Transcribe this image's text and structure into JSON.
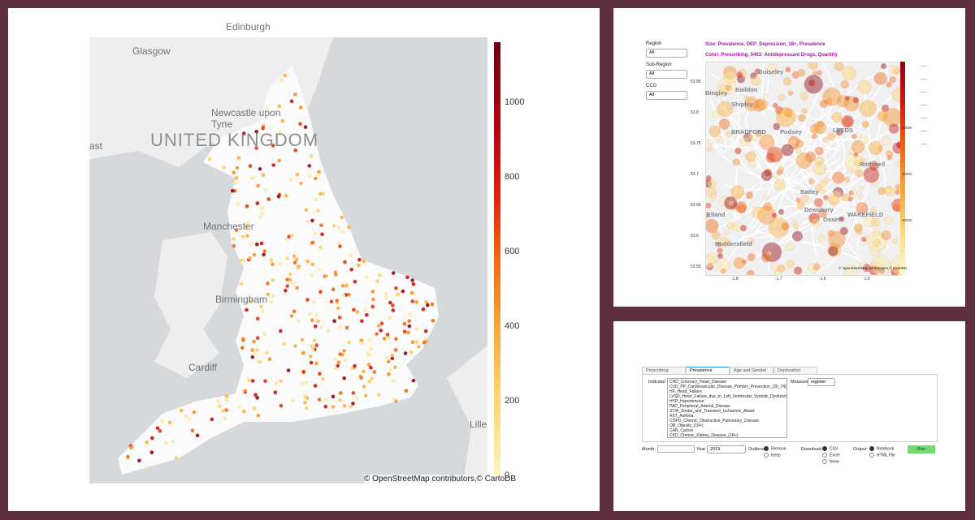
{
  "main_map": {
    "place_labels": [
      "Edinburgh",
      "Glasgow",
      "Newcastle upon Tyne",
      "ast",
      "Manchester",
      "Birmingham",
      "Cardiff",
      "Lille"
    ],
    "country_label": "UNITED KINGDOM",
    "colorbar_ticks": [
      "1000",
      "800",
      "600",
      "400",
      "200",
      "0"
    ],
    "attribution": "© OpenStreetMap contributors,© CartoDB"
  },
  "detail_map": {
    "filters": [
      {
        "label": "Region",
        "value": "All"
      },
      {
        "label": "Sub-Region",
        "value": "All"
      },
      {
        "label": "CCG",
        "value": "All"
      }
    ],
    "size_title": "Size: Prevalence, DEP_Depression_18+, Prevalence",
    "color_title": "Color: Prescribing, 0403: Antidepressant Drugs, Quantity",
    "place_labels": [
      "Guiseley",
      "Baildon",
      "Bingley",
      "Shipley",
      "BRADFORD",
      "Pudsey",
      "LEEDS",
      "Rothwell",
      "Batley",
      "Dewsbury",
      "Elland",
      "Ossett",
      "WAKEFIELD",
      "Huddersfield"
    ],
    "y_ticks": [
      "53.85",
      "53.8",
      "53.75",
      "53.7",
      "53.65",
      "53.6",
      "53.55"
    ],
    "x_ticks": [
      "-1.8",
      "-1.7",
      "-1.6",
      "-1.5"
    ],
    "colorbar_ticks": [
      "60000",
      "40000",
      "20000"
    ],
    "attribution": "© OpenStreetMap contributors,© CartoDB"
  },
  "controls": {
    "tabs": [
      "Prescribing",
      "Prevalence",
      "Age and Gender",
      "Deprivation"
    ],
    "indicator_label": "Indicator:",
    "indicators": [
      "CHD_Coronary_Heart_Disease",
      "CVD_PP_Cardiovascular_Disease_Primary_Prevention_(30_74)",
      "HF_Heart_Failure",
      "LVSD_Heart_Failure_due_to_Left_Ventricular_Systolic_Dysfunction",
      "HYP_Hypertension",
      "PAD_Peripheral_Arterial_Disease",
      "STIA_Stroke_and_Transient_Ischaemic_Attack",
      "AST_Asthma",
      "COPD_Chronic_Obstructive_Pulmonary_Disease",
      "OB_Obesity_(18+)",
      "CAN_Cancer",
      "CKD_Chronic_Kidney_Disease_(18+)"
    ],
    "measure_label": "Measure:",
    "measure_value": "register",
    "month_label": "Month:",
    "year_label": "Year:",
    "year_value": "2019",
    "outliers_label": "Outliers:",
    "outliers_options": [
      "Remove",
      "Keep"
    ],
    "download_label": "Download:",
    "download_options": [
      "CSV",
      "Excel",
      "None"
    ],
    "output_label": "Output:",
    "output_options": [
      "Notebook",
      "HTML File"
    ],
    "run_button": "Run"
  }
}
